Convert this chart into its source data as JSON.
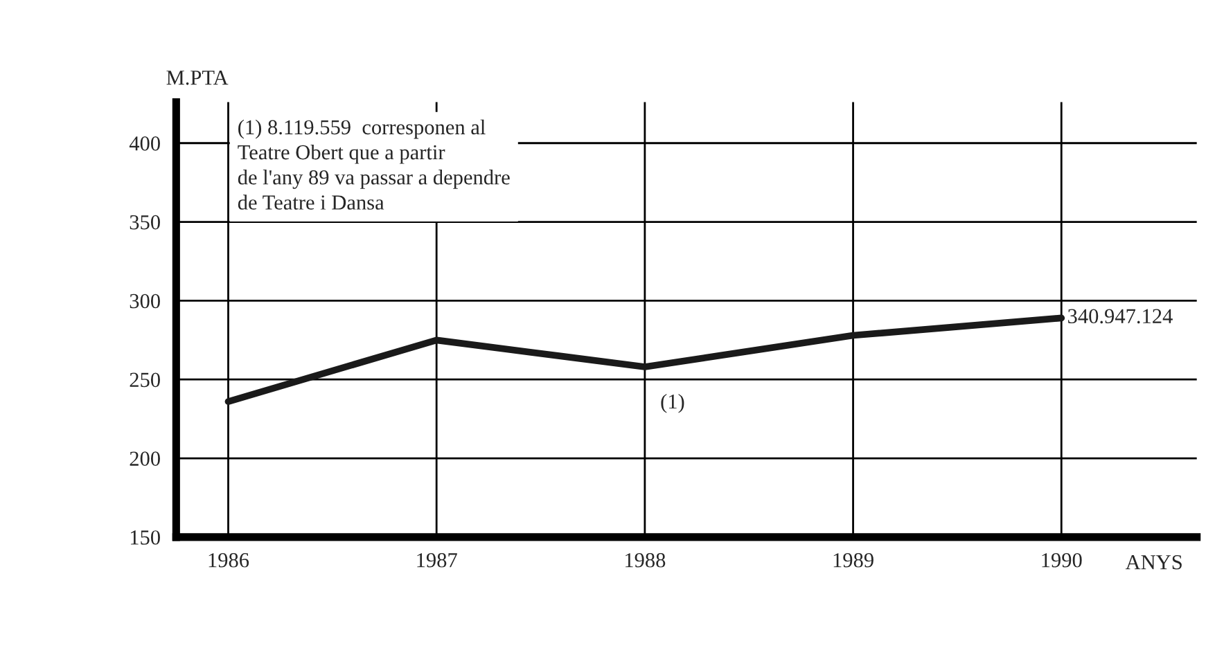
{
  "chart_data": {
    "type": "line",
    "ylabel": "M.PTA",
    "xlabel": "ANYS",
    "x": [
      1986,
      1987,
      1988,
      1989,
      1990
    ],
    "series": [
      {
        "color": "#1a1a1a",
        "values": [
          236,
          275,
          258,
          278,
          289
        ]
      }
    ],
    "xlim": [
      1985.75,
      1990.65
    ],
    "xticks": [
      1986,
      1987,
      1988,
      1989,
      1990
    ],
    "ylim": [
      150,
      426
    ],
    "yticks": [
      150,
      200,
      250,
      300,
      350,
      400
    ],
    "grid": true,
    "marker": "none",
    "line_style": "solid",
    "annotations": [
      "(1) 8.119.559  corresponen al\nTeatre Obert que a partir\nde l'any 89 va passar a dependre\nde Teatre i Dansa",
      {
        "text": "(1)",
        "x": 1988,
        "y": 258
      },
      {
        "text": "340.947.124",
        "x": 1990,
        "y": 289
      }
    ]
  }
}
